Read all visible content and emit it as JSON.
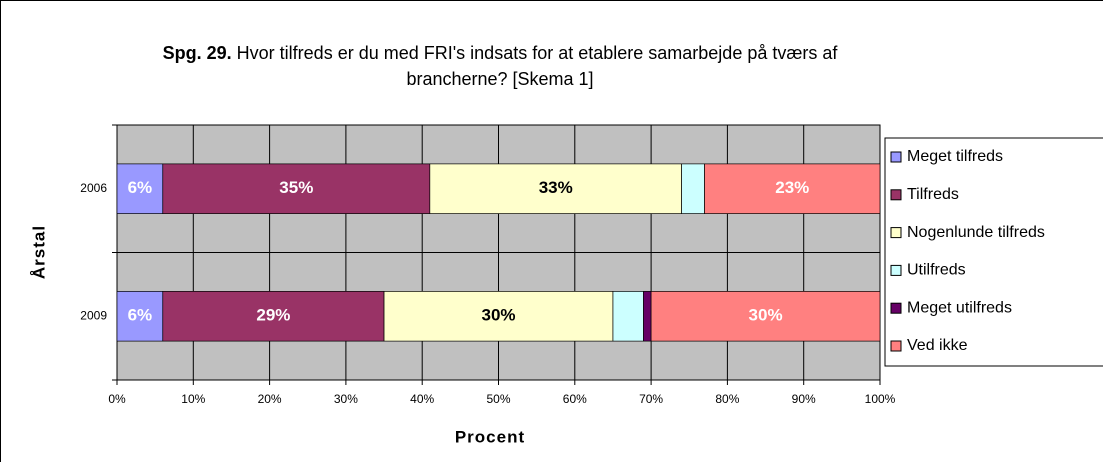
{
  "chart_data": {
    "type": "stacked_barh",
    "title_bold": "Spg. 29.",
    "title": "Hvor tilfreds er du med FRI's indsats for at etablere samarbejde på tværs af brancherne? [Skema 1]",
    "xlabel": "Procent",
    "ylabel": "Årstal",
    "categories": [
      "2006",
      "2009"
    ],
    "series": [
      {
        "name": "Meget tilfreds",
        "color": "#9999ff",
        "values": [
          6,
          6
        ],
        "value_labels": [
          "6%",
          "6%"
        ]
      },
      {
        "name": "Tilfreds",
        "color": "#993366",
        "values": [
          35,
          29
        ],
        "value_labels": [
          "35%",
          "29%"
        ]
      },
      {
        "name": "Nogenlunde tilfreds",
        "color": "#ffffcc",
        "values": [
          33,
          30
        ],
        "value_labels": [
          "33%",
          "30%"
        ]
      },
      {
        "name": "Utilfreds",
        "color": "#ccffff",
        "values": [
          3,
          4
        ],
        "value_labels": [
          null,
          null
        ]
      },
      {
        "name": "Meget utilfreds",
        "color": "#660066",
        "values": [
          0,
          1
        ],
        "value_labels": [
          null,
          null
        ]
      },
      {
        "name": "Ved ikke",
        "color": "#ff8080",
        "values": [
          23,
          30
        ],
        "value_labels": [
          "23%",
          "30%"
        ]
      }
    ],
    "xlim": [
      0,
      100
    ],
    "xticks": [
      {
        "value": 0,
        "label": "0%"
      },
      {
        "value": 10,
        "label": "10%"
      },
      {
        "value": 20,
        "label": "20%"
      },
      {
        "value": 30,
        "label": "30%"
      },
      {
        "value": 40,
        "label": "40%"
      },
      {
        "value": 50,
        "label": "50%"
      },
      {
        "value": 60,
        "label": "60%"
      },
      {
        "value": 70,
        "label": "70%"
      },
      {
        "value": 80,
        "label": "80%"
      },
      {
        "value": 90,
        "label": "90%"
      },
      {
        "value": 100,
        "label": "100%"
      }
    ],
    "grid": true,
    "legend": "right"
  }
}
